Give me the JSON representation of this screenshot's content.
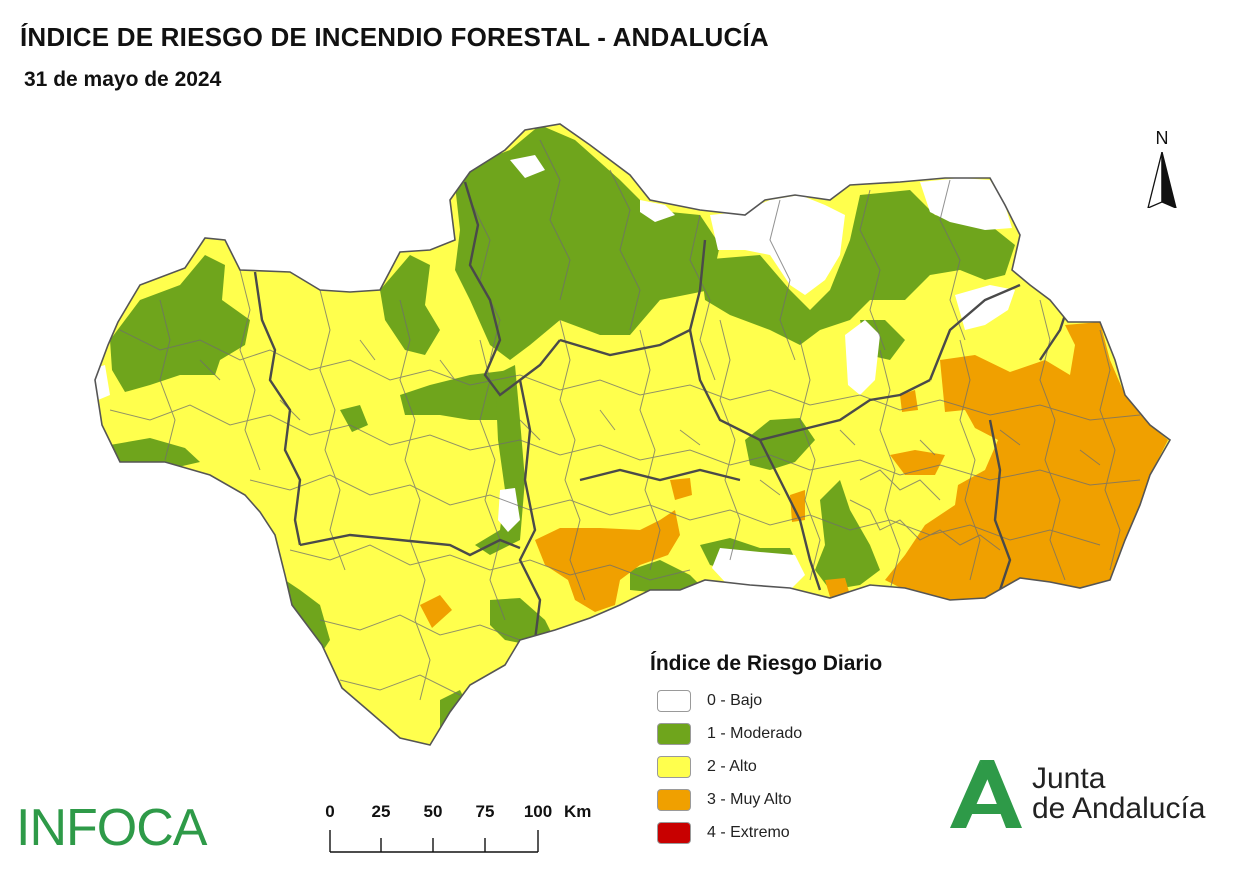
{
  "header": {
    "title": "ÍNDICE DE RIESGO DE INCENDIO FORESTAL - ANDALUCÍA",
    "date": "31 de mayo de 2024"
  },
  "north_arrow": {
    "label": "N"
  },
  "legend": {
    "title": "Índice de Riesgo Diario",
    "items": [
      {
        "label": "0 - Bajo",
        "color": "#ffffff"
      },
      {
        "label": "1 - Moderado",
        "color": "#6fa51c"
      },
      {
        "label": "2 - Alto",
        "color": "#ffff4d"
      },
      {
        "label": "3 - Muy Alto",
        "color": "#f0a000"
      },
      {
        "label": "4 - Extremo",
        "color": "#c80000"
      }
    ]
  },
  "scale_bar": {
    "ticks": [
      "0",
      "25",
      "50",
      "75",
      "100"
    ],
    "unit": "Km"
  },
  "logos": {
    "infoca": "INFOCA",
    "junta_line1": "Junta",
    "junta_line2": "de Andalucía"
  },
  "map_colors": {
    "bajo": "#ffffff",
    "moderado": "#6fa51c",
    "alto": "#ffff4d",
    "muy_alto": "#f0a000",
    "borders": "#5a5a5a"
  }
}
